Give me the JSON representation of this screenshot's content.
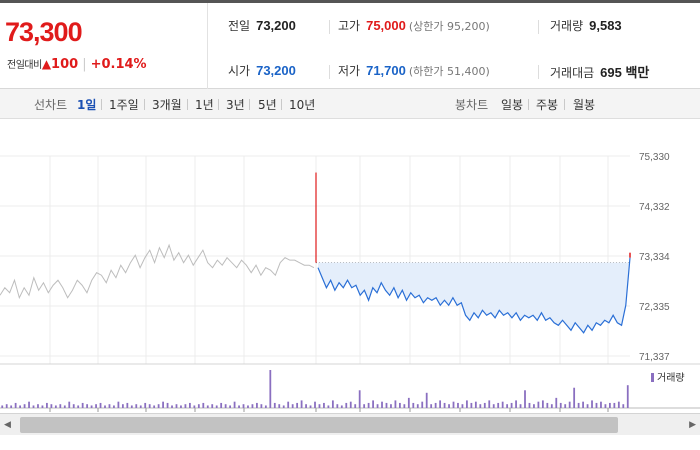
{
  "summary": {
    "current_price": "73,300",
    "change_label": "전일대비",
    "change_arrow": "▲",
    "change_value": "100",
    "change_pct": "+0.14%"
  },
  "info": {
    "prev_close": {
      "label": "전일",
      "value": "73,200"
    },
    "high": {
      "label": "고가",
      "value": "75,000",
      "sub": "(상한가 95,200)"
    },
    "volume": {
      "label": "거래량",
      "value": "9,583"
    },
    "open": {
      "label": "시가",
      "value": "73,200"
    },
    "low": {
      "label": "저가",
      "value": "71,700",
      "sub": "(하한가 51,400)"
    },
    "trade_amount": {
      "label": "거래대금",
      "value": "695 백만"
    }
  },
  "tabs": {
    "line_label": "선차트",
    "line_periods": [
      "1일",
      "1주일",
      "3개월",
      "1년",
      "3년",
      "5년",
      "10년"
    ],
    "line_active": "1일",
    "candle_label": "봉차트",
    "candle_periods": [
      "일봉",
      "주봉",
      "월봉"
    ]
  },
  "chart_data": {
    "type": "line",
    "y_ticks": [
      "75,330",
      "74,332",
      "73,334",
      "72,335",
      "71,337"
    ],
    "ylim": [
      71337,
      75330
    ],
    "reference_line": 73200,
    "volume_legend": "거래량",
    "series": [
      {
        "values": [
          72550,
          72700,
          72600,
          72850,
          72500,
          72700,
          72550,
          72900,
          72650,
          72800,
          72600,
          72750,
          72850,
          72700,
          72500,
          72650,
          72850,
          72750,
          72600,
          72850,
          73000,
          72950,
          72800,
          73050,
          72900,
          73150,
          73000,
          73200,
          73350,
          73100,
          73300,
          73450,
          73200,
          73500,
          73300,
          73550,
          73250,
          73400,
          73200,
          73350,
          73150,
          73300,
          73450,
          73200,
          73100,
          73250,
          73150,
          73300,
          73200,
          73100,
          73250,
          73150,
          73000,
          73150,
          72950,
          73100,
          73050,
          72950,
          73200,
          73300,
          73250,
          73250,
          73200,
          73150,
          73150,
          73100
        ]
      },
      {
        "values": [
          73100,
          72900,
          72700,
          72850,
          72650,
          72800,
          72700,
          72850,
          72700,
          72750,
          72550,
          72650,
          72450,
          72700,
          72600,
          72800,
          72650,
          72550,
          72700,
          72500,
          72650,
          72450,
          72600,
          72500,
          72550,
          72400,
          72500,
          72450,
          72500,
          72350,
          72450,
          72350,
          72500,
          72350,
          72400,
          72150,
          72050,
          72200,
          72100,
          72250,
          72150,
          72200,
          72100,
          72250,
          72150,
          72200,
          72100,
          72200,
          72050,
          72150,
          72100,
          72150,
          72050,
          72200,
          72050,
          72100,
          72000,
          71950,
          72050,
          71950,
          71850,
          72000,
          71900,
          71800,
          71950,
          71850,
          72000,
          71950,
          72050,
          72000,
          72150,
          72000,
          71950,
          72350,
          73300
        ]
      }
    ],
    "volume": [
      2,
      3,
      2,
      4,
      2,
      3,
      5,
      2,
      3,
      2,
      4,
      3,
      2,
      3,
      2,
      5,
      3,
      2,
      4,
      3,
      2,
      3,
      4,
      2,
      3,
      2,
      5,
      3,
      4,
      2,
      3,
      2,
      4,
      3,
      2,
      3,
      5,
      4,
      2,
      3,
      2,
      3,
      4,
      2,
      3,
      4,
      2,
      3,
      2,
      4,
      3,
      2,
      5,
      2,
      3,
      2,
      3,
      4,
      3,
      2,
      30,
      4,
      3,
      2,
      5,
      3,
      4,
      6,
      3,
      2,
      5,
      3,
      4,
      2,
      6,
      3,
      2,
      4,
      5,
      3,
      14,
      3,
      4,
      6,
      3,
      5,
      4,
      3,
      6,
      4,
      3,
      8,
      4,
      3,
      5,
      12,
      3,
      4,
      6,
      4,
      3,
      5,
      4,
      3,
      6,
      4,
      5,
      3,
      4,
      6,
      3,
      4,
      5,
      3,
      4,
      6,
      3,
      14,
      4,
      3,
      5,
      6,
      4,
      3,
      8,
      4,
      3,
      5,
      16,
      4,
      5,
      3,
      6,
      4,
      5,
      3,
      4,
      4,
      5,
      3,
      18
    ]
  }
}
